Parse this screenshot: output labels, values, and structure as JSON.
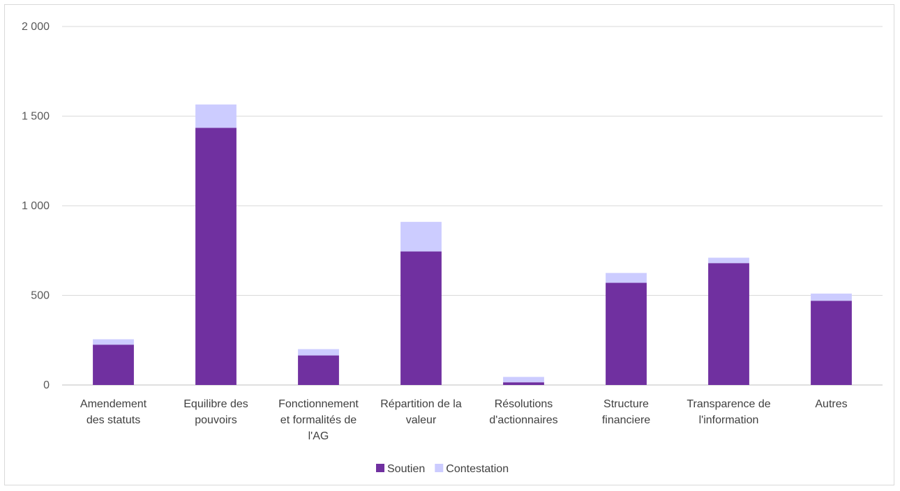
{
  "chart_data": {
    "type": "bar",
    "stacked": true,
    "categories": [
      [
        "Amendement",
        "des statuts"
      ],
      [
        "Equilibre des",
        "pouvoirs"
      ],
      [
        "Fonctionnement",
        "et formalités de",
        "l'AG"
      ],
      [
        "Répartition de la",
        "valeur"
      ],
      [
        "Résolutions",
        "d'actionnaires"
      ],
      [
        "Structure",
        "financiere"
      ],
      [
        "Transparence de",
        "l'information"
      ],
      [
        "Autres"
      ]
    ],
    "series": [
      {
        "name": "Soutien",
        "color": "#7030a0",
        "values": [
          225,
          1435,
          165,
          745,
          15,
          570,
          680,
          470
        ]
      },
      {
        "name": "Contestation",
        "color": "#ccccff",
        "values": [
          30,
          130,
          35,
          165,
          30,
          55,
          30,
          40
        ]
      }
    ],
    "ylim": [
      0,
      2000
    ],
    "yticks": [
      0,
      500,
      1000,
      1500,
      2000
    ],
    "ytick_labels": [
      "0",
      "500",
      "1 000",
      "1 500",
      "2 000"
    ],
    "grid": true,
    "legend_position": "bottom"
  }
}
